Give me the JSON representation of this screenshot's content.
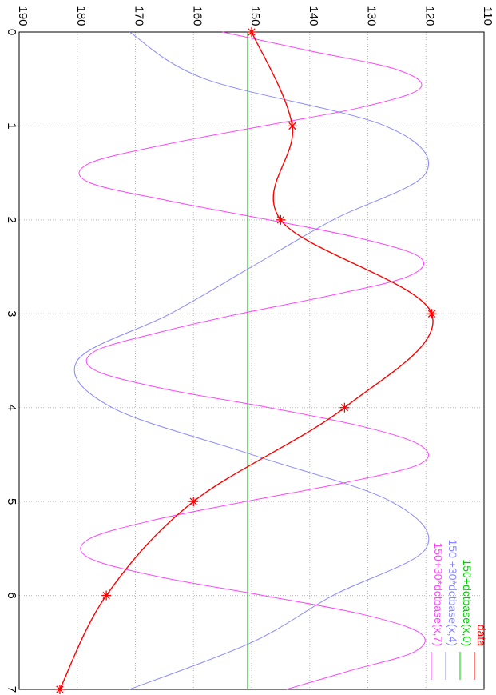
{
  "chart_data": {
    "type": "line",
    "title": "",
    "xlabel": "",
    "ylabel": "",
    "xlim": [
      0,
      7
    ],
    "ylim": [
      110,
      190
    ],
    "x_ticks": [
      "0",
      "1",
      "2",
      "3",
      "4",
      "5",
      "6",
      "7"
    ],
    "y_ticks": [
      "110",
      "120",
      "130",
      "140",
      "150",
      "160",
      "170",
      "180",
      "190"
    ],
    "grid": true,
    "legend_position": "top-right",
    "series": [
      {
        "name": "data",
        "color": "#ff0000",
        "markers": "asterisk",
        "x": [
          0,
          1,
          2,
          3,
          4,
          5,
          6,
          7
        ],
        "y": [
          150,
          143,
          145,
          119,
          134,
          160,
          175,
          183
        ]
      },
      {
        "name": "150+dctbase(x,0)",
        "color": "#00cc00",
        "x": [
          0,
          7
        ],
        "y": [
          150.7,
          150.7
        ]
      },
      {
        "name": "150 +30*dctbase(x,4)",
        "color": "#8888ff",
        "x": [
          0,
          0.5,
          1,
          1.5,
          2,
          2.5,
          3,
          3.5,
          4,
          4.5,
          5,
          5.5,
          6,
          6.5,
          7
        ],
        "y": [
          171,
          158,
          127,
          120,
          136,
          150,
          164,
          180,
          174,
          150,
          126,
          120,
          136,
          150,
          171
        ]
      },
      {
        "name": "150+30*dctbase(x,7)",
        "color": "#ff44ff",
        "x": [
          0,
          0.2,
          0.4,
          0.6,
          0.8,
          1,
          1.2,
          1.4,
          1.6,
          1.8,
          2,
          2.2,
          2.4,
          2.6,
          2.8,
          3,
          3.2,
          3.4,
          3.6,
          3.8,
          4,
          4.2,
          4.4,
          4.6,
          4.8,
          5,
          5.2,
          5.4,
          5.6,
          5.8,
          6,
          6.2,
          6.4,
          6.6,
          6.8,
          7
        ],
        "y": [
          155,
          140,
          125,
          121,
          131,
          148,
          165,
          178,
          178,
          164,
          147,
          131,
          121,
          123,
          136,
          152,
          166,
          177,
          177,
          165,
          147,
          131,
          121,
          121,
          134,
          151,
          167,
          178,
          178,
          166,
          148,
          131,
          121,
          122,
          133,
          144
        ]
      }
    ]
  }
}
